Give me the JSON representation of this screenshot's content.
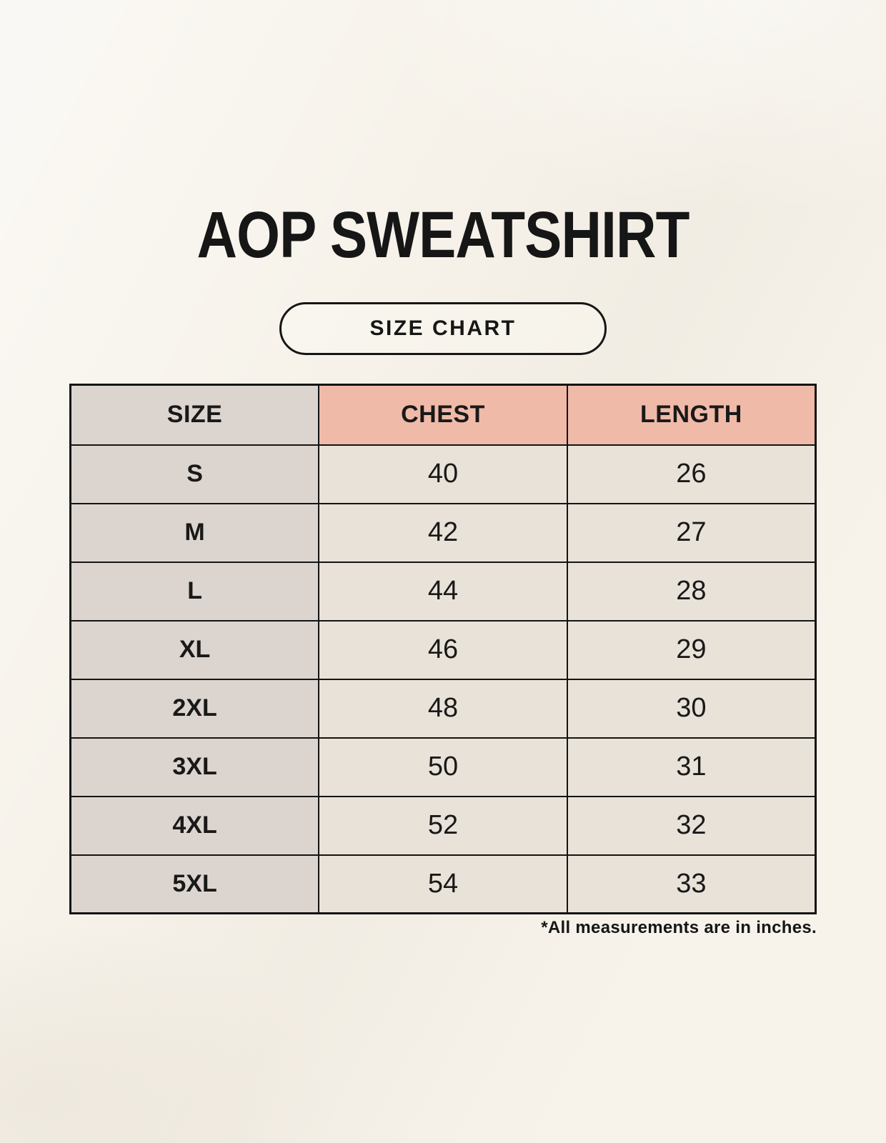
{
  "title": "AOP SWEATSHIRT",
  "badge": {
    "label": "SIZE CHART"
  },
  "size_table": {
    "headers": [
      "SIZE",
      "CHEST",
      "LENGTH"
    ],
    "rows": [
      {
        "size": "S",
        "chest": "40",
        "length": "26"
      },
      {
        "size": "M",
        "chest": "42",
        "length": "27"
      },
      {
        "size": "L",
        "chest": "44",
        "length": "28"
      },
      {
        "size": "XL",
        "chest": "46",
        "length": "29"
      },
      {
        "size": "2XL",
        "chest": "48",
        "length": "30"
      },
      {
        "size": "3XL",
        "chest": "50",
        "length": "31"
      },
      {
        "size": "4XL",
        "chest": "52",
        "length": "32"
      },
      {
        "size": "5XL",
        "chest": "54",
        "length": "33"
      }
    ]
  },
  "footnote": "*All measurements are in inches.",
  "colors": {
    "page_background": "#F7F3EB",
    "size_column": "#DCD5CF",
    "measure_header": "#F0BAA9",
    "measure_cell": "#E9E2D8",
    "border": "#141414",
    "text": "#191919"
  },
  "chart_data": {
    "type": "table",
    "title": "AOP SWEATSHIRT",
    "subtitle": "SIZE CHART",
    "columns": [
      "SIZE",
      "CHEST",
      "LENGTH"
    ],
    "units": "inches",
    "rows": [
      [
        "S",
        40,
        26
      ],
      [
        "M",
        42,
        27
      ],
      [
        "L",
        44,
        28
      ],
      [
        "XL",
        46,
        29
      ],
      [
        "2XL",
        48,
        30
      ],
      [
        "3XL",
        50,
        31
      ],
      [
        "4XL",
        52,
        32
      ],
      [
        "5XL",
        54,
        33
      ]
    ],
    "note": "*All measurements are in inches."
  }
}
